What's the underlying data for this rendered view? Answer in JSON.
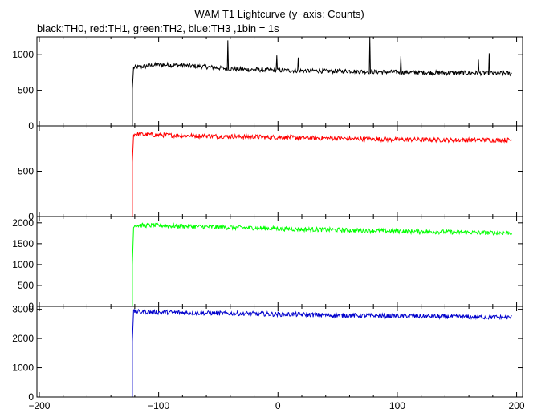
{
  "chart_data": {
    "type": "line",
    "title": "WAM T1 Lightcurve (y−axis: Counts)",
    "subtitle": "black:TH0, red:TH1, green:TH2, blue:TH3 ,1bin = 1s",
    "x_ticks": [
      -200,
      -100,
      0,
      100,
      200
    ],
    "x_tick_labels": [
      "−200",
      "−100",
      "0",
      "100",
      "200"
    ],
    "xlim": [
      -202,
      205
    ],
    "onset_x": -122,
    "panels": [
      {
        "name": "TH0",
        "color": "#000000",
        "ylim": [
          0,
          1250
        ],
        "y_ticks": [
          0,
          500,
          1000
        ],
        "y_tick_labels": [
          "0",
          "500",
          "1000"
        ],
        "pre_level": 0,
        "onset_point": 520,
        "post_x": [
          -121,
          -100,
          -80,
          -60,
          -40,
          -20,
          0,
          20,
          40,
          60,
          80,
          100,
          120,
          140,
          160,
          180,
          196
        ],
        "post_y": [
          820,
          860,
          850,
          830,
          800,
          790,
          780,
          775,
          770,
          770,
          760,
          755,
          750,
          745,
          745,
          740,
          735
        ],
        "spikes": [
          [
            -42,
            1200
          ],
          [
            -1,
            990
          ],
          [
            17,
            960
          ],
          [
            77,
            1250
          ],
          [
            103,
            980
          ],
          [
            168,
            930
          ],
          [
            177,
            1020
          ]
        ]
      },
      {
        "name": "TH1",
        "color": "#ff0000",
        "ylim": [
          0,
          1000
        ],
        "y_ticks": [
          0,
          500
        ],
        "y_tick_labels": [
          "0",
          "500"
        ],
        "pre_level": 0,
        "onset_point": 600,
        "post_x": [
          -121,
          -100,
          -80,
          -60,
          -40,
          -20,
          0,
          20,
          40,
          60,
          80,
          100,
          120,
          140,
          160,
          180,
          196
        ],
        "post_y": [
          910,
          900,
          895,
          890,
          885,
          880,
          875,
          870,
          865,
          860,
          855,
          850,
          848,
          845,
          845,
          845,
          845
        ],
        "spikes": []
      },
      {
        "name": "TH2",
        "color": "#00ff00",
        "ylim": [
          0,
          2150
        ],
        "y_ticks": [
          0,
          500,
          1000,
          1500,
          2000
        ],
        "y_tick_labels": [
          "0",
          "500",
          "1000",
          "1500",
          "2000"
        ],
        "pre_level": 0,
        "onset_point": 1000,
        "post_x": [
          -121,
          -100,
          -80,
          -60,
          -40,
          -20,
          0,
          20,
          40,
          60,
          80,
          100,
          120,
          140,
          160,
          180,
          196
        ],
        "post_y": [
          1940,
          1935,
          1920,
          1905,
          1890,
          1880,
          1860,
          1845,
          1835,
          1820,
          1810,
          1800,
          1790,
          1780,
          1770,
          1760,
          1760
        ],
        "spikes": []
      },
      {
        "name": "TH3",
        "color": "#0000cc",
        "ylim": [
          0,
          3100
        ],
        "y_ticks": [
          0,
          1000,
          2000,
          3000
        ],
        "y_tick_labels": [
          "0",
          "1000",
          "2000",
          "3000"
        ],
        "pre_level": 0,
        "onset_point": 1900,
        "post_x": [
          -121,
          -100,
          -80,
          -60,
          -40,
          -20,
          0,
          20,
          40,
          60,
          80,
          100,
          120,
          140,
          160,
          180,
          196
        ],
        "post_y": [
          2920,
          2900,
          2890,
          2870,
          2860,
          2850,
          2830,
          2820,
          2800,
          2790,
          2780,
          2770,
          2760,
          2750,
          2740,
          2730,
          2720
        ],
        "spikes": []
      }
    ]
  }
}
